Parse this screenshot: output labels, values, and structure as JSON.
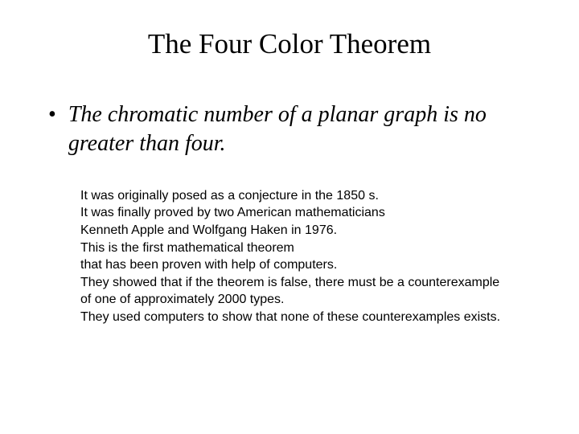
{
  "slide": {
    "title": "The Four Color Theorem",
    "theorem_statement": "The chromatic number of a planar graph is no greater than four.",
    "body_lines": [
      "It was originally posed as a conjecture in the 1850 s.",
      "It was finally proved by two American mathematicians",
      "Kenneth Apple and Wolfgang Haken in 1976.",
      "This is the first mathematical theorem",
      "that has been proven with help of computers.",
      "They showed that if the theorem is false, there must be a counterexample",
      "of one of approximately 2000 types.",
      "They used computers to show that none of these counterexamples exists."
    ],
    "background_color": "#ffffff",
    "text_color": "#000000",
    "title_fontsize": 35,
    "statement_fontsize": 28,
    "body_fontsize": 16
  }
}
